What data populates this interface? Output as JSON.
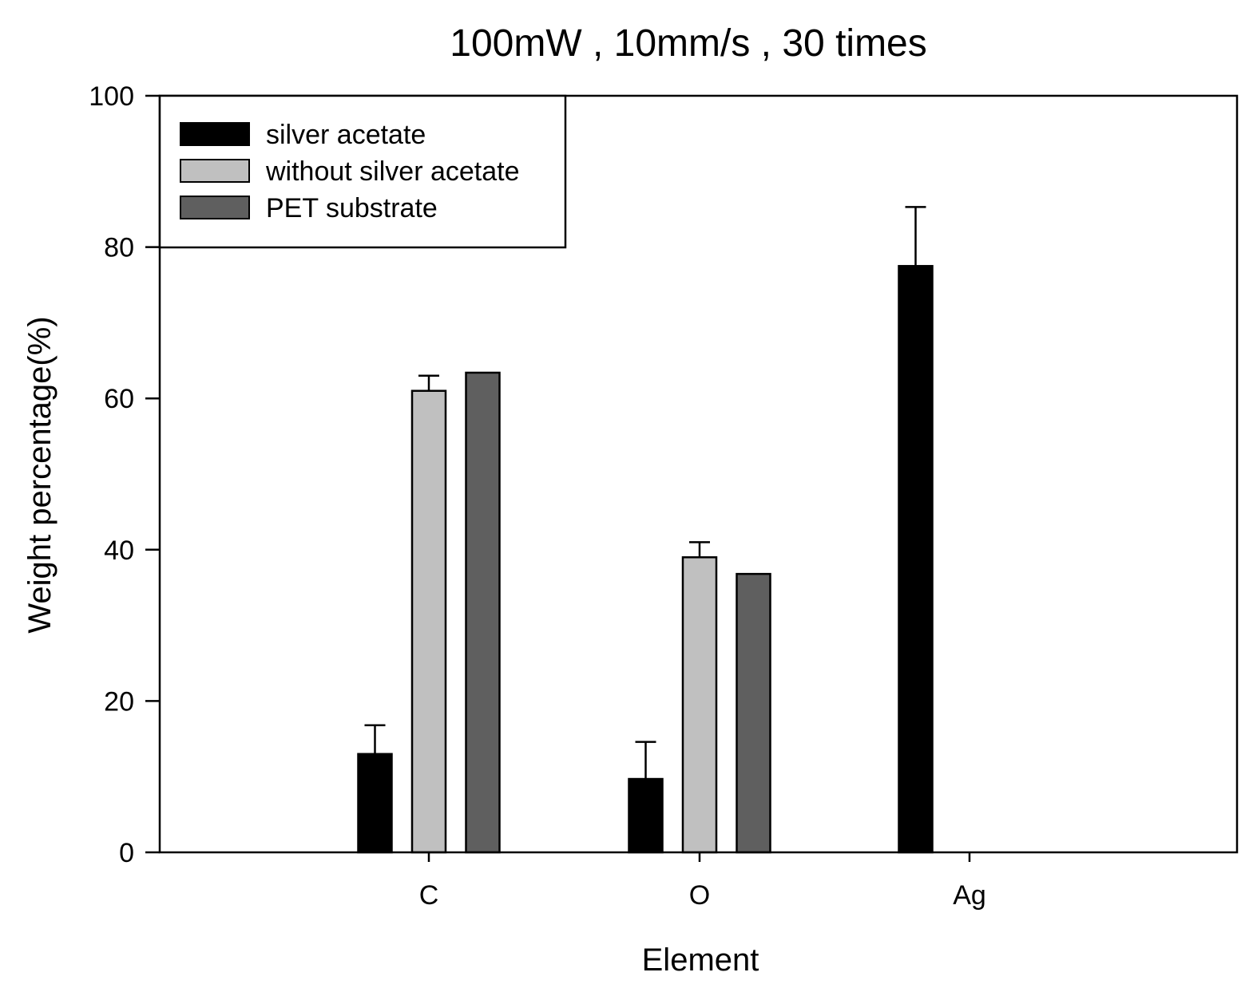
{
  "chart_data": {
    "type": "bar",
    "title": "100mW , 10mm/s , 30 times",
    "xlabel": "Element",
    "ylabel": "Weight percentage(%)",
    "categories": [
      "C",
      "O",
      "Ag"
    ],
    "ylim": [
      0,
      100
    ],
    "yticks": [
      0,
      20,
      40,
      60,
      80,
      100
    ],
    "ytick_labels": [
      "0",
      "20",
      "40",
      "60",
      "80",
      "100"
    ],
    "grid": false,
    "legend_position": "top-left",
    "series": [
      {
        "name": "silver acetate",
        "color": "#000000",
        "values": [
          13.0,
          9.7,
          77.5
        ],
        "errors": [
          3.8,
          4.9,
          7.8
        ]
      },
      {
        "name": "without silver acetate",
        "color": "#c0c0c0",
        "values": [
          61.0,
          39.0,
          null
        ],
        "errors": [
          2.0,
          2.0,
          null
        ]
      },
      {
        "name": "PET substrate",
        "color": "#5f5f5f",
        "values": [
          63.4,
          36.8,
          null
        ],
        "errors": [
          null,
          null,
          null
        ]
      }
    ]
  }
}
